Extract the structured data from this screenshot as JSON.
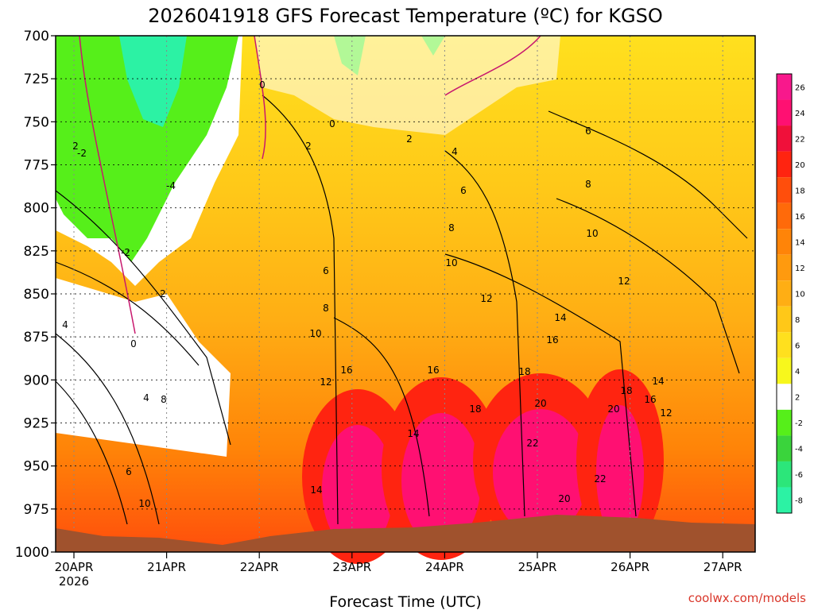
{
  "chart_data": {
    "type": "heatmap",
    "title": "2026041918 GFS Forecast Temperature (ºC) for KGSO",
    "xlabel": "Forecast Time (UTC)",
    "ylabel": "",
    "credit": "coolwx.com/models",
    "y_ticks": [
      "700",
      "725",
      "750",
      "775",
      "800",
      "825",
      "850",
      "875",
      "900",
      "925",
      "950",
      "975",
      "1000"
    ],
    "y_range": [
      700,
      1000
    ],
    "x_ticks": [
      "20APR",
      "21APR",
      "22APR",
      "23APR",
      "24APR",
      "25APR",
      "26APR",
      "27APR"
    ],
    "x_year": "2026",
    "x_range_days": [
      0,
      7.5
    ],
    "legend": [
      "-8",
      "-6",
      "-4",
      "-2",
      "2",
      "4",
      "6",
      "8",
      "10",
      "12",
      "14",
      "16",
      "18",
      "20",
      "22",
      "24",
      "26"
    ],
    "legend_colors": [
      "#2cf2a4",
      "#2ce67a",
      "#3ad43c",
      "#56ef1a",
      "#ffffff",
      "#f7f71c",
      "#ffe01e",
      "#ffc818",
      "#ffae14",
      "#ff9a0e",
      "#ff8408",
      "#ff6a0a",
      "#ff4e0c",
      "#ff2410",
      "#f0103a",
      "#ff1072",
      "#f8188c"
    ],
    "colors": {
      "terrain": "#a0522d",
      "contour_line": "#000000",
      "freezing_line": "#c8186e"
    },
    "contour_labels": [
      "0",
      "0",
      "0",
      "2",
      "2",
      "2",
      "2",
      "-2",
      "-2",
      "-4",
      "4",
      "4",
      "4",
      "6",
      "6",
      "6",
      "6",
      "8",
      "8",
      "8",
      "8",
      "10",
      "10",
      "10",
      "10",
      "12",
      "12",
      "12",
      "12",
      "14",
      "14",
      "14",
      "14",
      "16",
      "16",
      "16",
      "16",
      "18",
      "18",
      "18",
      "20",
      "20",
      "20",
      "22",
      "22"
    ]
  }
}
